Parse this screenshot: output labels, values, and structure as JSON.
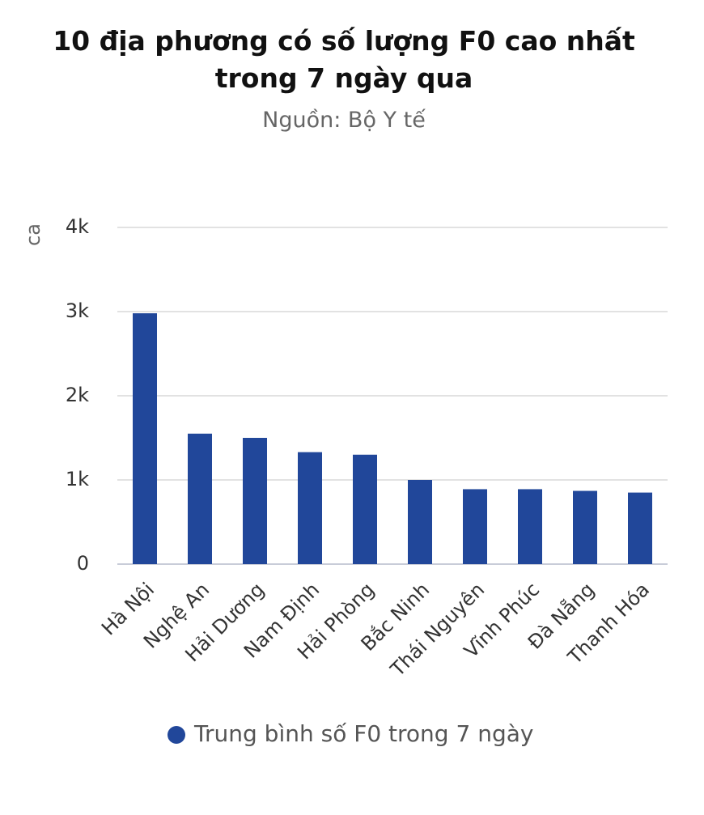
{
  "chart_data": {
    "type": "bar",
    "title": "10 địa phương có số lượng F0 cao nhất trong 7 ngày qua",
    "subtitle": "Nguồn: Bộ Y tế",
    "y_label": "ca",
    "categories": [
      "Hà Nội",
      "Nghệ An",
      "Hải Dương",
      "Nam Định",
      "Hải Phòng",
      "Bắc Ninh",
      "Thái Nguyên",
      "Vĩnh Phúc",
      "Đà Nẵng",
      "Thanh Hóa"
    ],
    "series": [
      {
        "name": "Trung bình số F0 trong 7 ngày",
        "color": "#21479a",
        "values": [
          2980,
          1550,
          1500,
          1330,
          1300,
          1000,
          890,
          890,
          870,
          850
        ]
      }
    ],
    "ylim": [
      0,
      4000
    ],
    "yticks": [
      0,
      {
        "value": 1000,
        "label": "1k"
      },
      {
        "value": 2000,
        "label": "2k"
      },
      {
        "value": 3000,
        "label": "3k"
      },
      {
        "value": 4000,
        "label": "4k"
      }
    ],
    "grid": true,
    "legend": "bottom"
  }
}
